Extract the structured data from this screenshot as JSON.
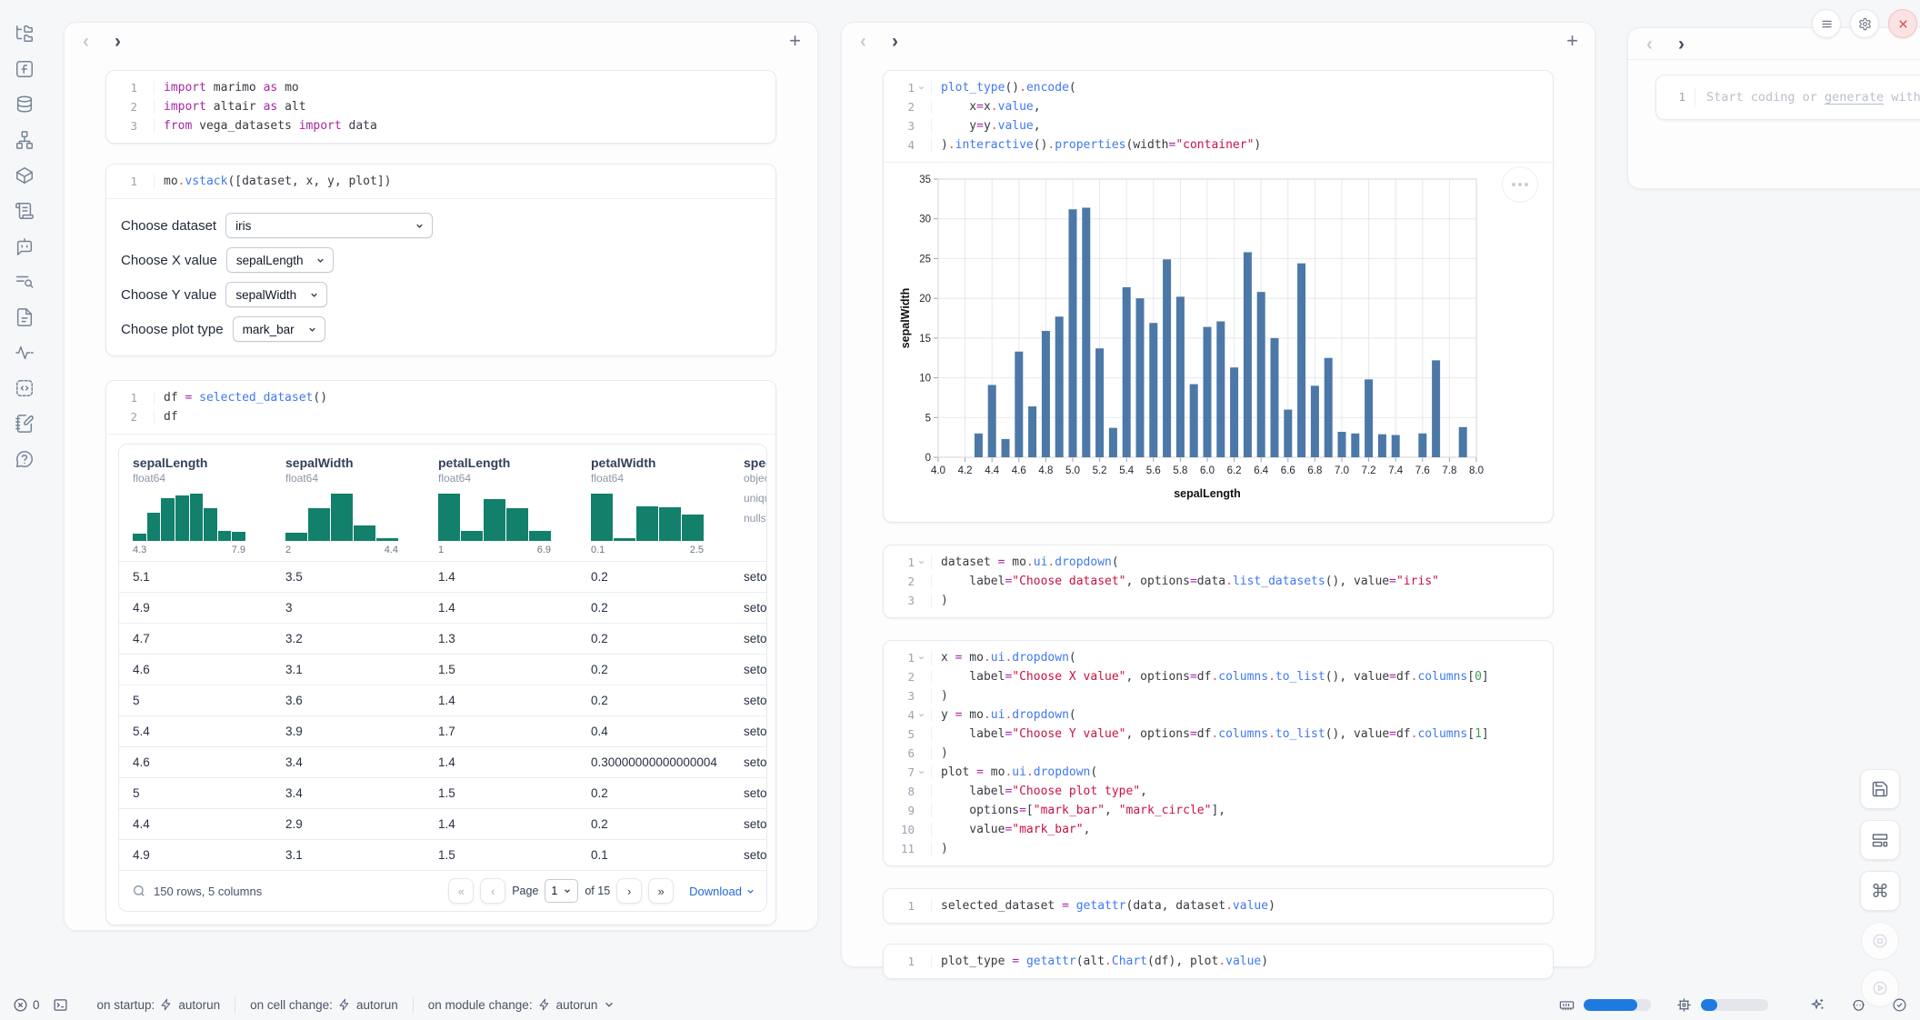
{
  "sidebar": {
    "icons": [
      "file-explorer",
      "functions",
      "data-sources",
      "dependency-graph",
      "packages",
      "logs",
      "ai-chat",
      "outline",
      "documentation",
      "tracing",
      "snippets",
      "scratchpad",
      "help"
    ]
  },
  "panel_nav": {
    "back": "‹",
    "forward": "›",
    "add": "+"
  },
  "left_panel": {
    "cells": {
      "imports": {
        "folds": [],
        "lines": [
          [
            [
              "kw",
              "import"
            ],
            [
              "pl",
              " marimo "
            ],
            [
              "kw",
              "as"
            ],
            [
              "pl",
              " mo"
            ]
          ],
          [
            [
              "kw",
              "import"
            ],
            [
              "pl",
              " altair "
            ],
            [
              "kw",
              "as"
            ],
            [
              "pl",
              " alt"
            ]
          ],
          [
            [
              "kw",
              "from"
            ],
            [
              "pl",
              " vega_datasets "
            ],
            [
              "kw",
              "import"
            ],
            [
              "pl",
              " data"
            ]
          ]
        ]
      },
      "vstack": {
        "folds": [],
        "lines": [
          [
            [
              "pl",
              "mo"
            ],
            [
              "dot",
              "."
            ],
            [
              "fn",
              "vstack"
            ],
            [
              "pl",
              "([dataset, x, y, plot])"
            ]
          ]
        ]
      },
      "df": {
        "folds": [],
        "lines": [
          [
            [
              "pl",
              "df "
            ],
            [
              "op",
              "="
            ],
            [
              "pl",
              " "
            ],
            [
              "fn",
              "selected_dataset"
            ],
            [
              "pl",
              "()"
            ]
          ],
          [
            [
              "pl",
              "df"
            ]
          ]
        ]
      }
    },
    "controls": [
      {
        "label": "Choose dataset",
        "value": "iris"
      },
      {
        "label": "Choose X value",
        "value": "sepalLength"
      },
      {
        "label": "Choose Y value",
        "value": "sepalWidth"
      },
      {
        "label": "Choose plot type",
        "value": "mark_bar"
      }
    ],
    "table": {
      "columns": [
        {
          "name": "sepalLength",
          "type": "float64",
          "min": "4.3",
          "max": "7.9",
          "hist": [
            16,
            59,
            91,
            96,
            100,
            69,
            21,
            19
          ]
        },
        {
          "name": "sepalWidth",
          "type": "float64",
          "min": "2",
          "max": "4.4",
          "hist": [
            17,
            69,
            100,
            33,
            6
          ]
        },
        {
          "name": "petalLength",
          "type": "float64",
          "min": "1",
          "max": "6.9",
          "hist": [
            100,
            22,
            88,
            70,
            22
          ]
        },
        {
          "name": "petalWidth",
          "type": "float64",
          "min": "0.1",
          "max": "2.5",
          "hist": [
            100,
            5,
            73,
            71,
            56
          ]
        },
        {
          "name": "species",
          "type": "object",
          "meta": [
            "unique:",
            "nulls:"
          ]
        }
      ],
      "rows": [
        [
          "5.1",
          "3.5",
          "1.4",
          "0.2",
          "setosa"
        ],
        [
          "4.9",
          "3",
          "1.4",
          "0.2",
          "setosa"
        ],
        [
          "4.7",
          "3.2",
          "1.3",
          "0.2",
          "setosa"
        ],
        [
          "4.6",
          "3.1",
          "1.5",
          "0.2",
          "setosa"
        ],
        [
          "5",
          "3.6",
          "1.4",
          "0.2",
          "setosa"
        ],
        [
          "5.4",
          "3.9",
          "1.7",
          "0.4",
          "setosa"
        ],
        [
          "4.6",
          "3.4",
          "1.4",
          "0.30000000000000004",
          "setosa"
        ],
        [
          "5",
          "3.4",
          "1.5",
          "0.2",
          "setosa"
        ],
        [
          "4.4",
          "2.9",
          "1.4",
          "0.2",
          "setosa"
        ],
        [
          "4.9",
          "3.1",
          "1.5",
          "0.1",
          "setosa"
        ]
      ],
      "footer": {
        "summary": "150 rows, 5 columns",
        "page_label": "Page",
        "page_value": "1",
        "of_label": "of 15",
        "download_label": "Download"
      }
    }
  },
  "middle_panel": {
    "cells": {
      "plot": {
        "folds": [
          1
        ],
        "lines": [
          [
            [
              "fn",
              "plot_type"
            ],
            [
              "pl",
              "()"
            ],
            [
              "dot",
              "."
            ],
            [
              "fn",
              "encode"
            ],
            [
              "pl",
              "("
            ]
          ],
          [
            [
              "pl",
              "    x"
            ],
            [
              "op",
              "="
            ],
            [
              "pl",
              "x"
            ],
            [
              "dot",
              "."
            ],
            [
              "fn",
              "value"
            ],
            [
              "pl",
              ","
            ]
          ],
          [
            [
              "pl",
              "    y"
            ],
            [
              "op",
              "="
            ],
            [
              "pl",
              "y"
            ],
            [
              "dot",
              "."
            ],
            [
              "fn",
              "value"
            ],
            [
              "pl",
              ","
            ]
          ],
          [
            [
              "pl",
              ")"
            ],
            [
              "dot",
              "."
            ],
            [
              "fn",
              "interactive"
            ],
            [
              "pl",
              "()"
            ],
            [
              "dot",
              "."
            ],
            [
              "fn",
              "properties"
            ],
            [
              "pl",
              "(width"
            ],
            [
              "op",
              "="
            ],
            [
              "str",
              "\"container\""
            ],
            [
              "pl",
              ")"
            ]
          ]
        ]
      },
      "dataset": {
        "folds": [
          1
        ],
        "lines": [
          [
            [
              "pl",
              "dataset "
            ],
            [
              "op",
              "="
            ],
            [
              "pl",
              " mo"
            ],
            [
              "dot",
              "."
            ],
            [
              "fn",
              "ui"
            ],
            [
              "dot",
              "."
            ],
            [
              "fn",
              "dropdown"
            ],
            [
              "pl",
              "("
            ]
          ],
          [
            [
              "pl",
              "    label"
            ],
            [
              "op",
              "="
            ],
            [
              "str",
              "\"Choose dataset\""
            ],
            [
              "pl",
              ", options"
            ],
            [
              "op",
              "="
            ],
            [
              "pl",
              "data"
            ],
            [
              "dot",
              "."
            ],
            [
              "fn",
              "list_datasets"
            ],
            [
              "pl",
              "(), value"
            ],
            [
              "op",
              "="
            ],
            [
              "str",
              "\"iris\""
            ]
          ],
          [
            [
              "pl",
              ")"
            ]
          ]
        ]
      },
      "xyplot": {
        "folds": [
          1,
          4,
          7
        ],
        "lines": [
          [
            [
              "pl",
              "x "
            ],
            [
              "op",
              "="
            ],
            [
              "pl",
              " mo"
            ],
            [
              "dot",
              "."
            ],
            [
              "fn",
              "ui"
            ],
            [
              "dot",
              "."
            ],
            [
              "fn",
              "dropdown"
            ],
            [
              "pl",
              "("
            ]
          ],
          [
            [
              "pl",
              "    label"
            ],
            [
              "op",
              "="
            ],
            [
              "str",
              "\"Choose X value\""
            ],
            [
              "pl",
              ", options"
            ],
            [
              "op",
              "="
            ],
            [
              "pl",
              "df"
            ],
            [
              "dot",
              "."
            ],
            [
              "fn",
              "columns"
            ],
            [
              "dot",
              "."
            ],
            [
              "fn",
              "to_list"
            ],
            [
              "pl",
              "(), value"
            ],
            [
              "op",
              "="
            ],
            [
              "pl",
              "df"
            ],
            [
              "dot",
              "."
            ],
            [
              "fn",
              "columns"
            ],
            [
              "pl",
              "["
            ],
            [
              "num",
              "0"
            ],
            [
              "pl",
              "]"
            ]
          ],
          [
            [
              "pl",
              ")"
            ]
          ],
          [
            [
              "pl",
              "y "
            ],
            [
              "op",
              "="
            ],
            [
              "pl",
              " mo"
            ],
            [
              "dot",
              "."
            ],
            [
              "fn",
              "ui"
            ],
            [
              "dot",
              "."
            ],
            [
              "fn",
              "dropdown"
            ],
            [
              "pl",
              "("
            ]
          ],
          [
            [
              "pl",
              "    label"
            ],
            [
              "op",
              "="
            ],
            [
              "str",
              "\"Choose Y value\""
            ],
            [
              "pl",
              ", options"
            ],
            [
              "op",
              "="
            ],
            [
              "pl",
              "df"
            ],
            [
              "dot",
              "."
            ],
            [
              "fn",
              "columns"
            ],
            [
              "dot",
              "."
            ],
            [
              "fn",
              "to_list"
            ],
            [
              "pl",
              "(), value"
            ],
            [
              "op",
              "="
            ],
            [
              "pl",
              "df"
            ],
            [
              "dot",
              "."
            ],
            [
              "fn",
              "columns"
            ],
            [
              "pl",
              "["
            ],
            [
              "num",
              "1"
            ],
            [
              "pl",
              "]"
            ]
          ],
          [
            [
              "pl",
              ")"
            ]
          ],
          [
            [
              "pl",
              "plot "
            ],
            [
              "op",
              "="
            ],
            [
              "pl",
              " mo"
            ],
            [
              "dot",
              "."
            ],
            [
              "fn",
              "ui"
            ],
            [
              "dot",
              "."
            ],
            [
              "fn",
              "dropdown"
            ],
            [
              "pl",
              "("
            ]
          ],
          [
            [
              "pl",
              "    label"
            ],
            [
              "op",
              "="
            ],
            [
              "str",
              "\"Choose plot type\""
            ],
            [
              "pl",
              ","
            ]
          ],
          [
            [
              "pl",
              "    options"
            ],
            [
              "op",
              "="
            ],
            [
              "pl",
              "["
            ],
            [
              "str",
              "\"mark_bar\""
            ],
            [
              "pl",
              ", "
            ],
            [
              "str",
              "\"mark_circle\""
            ],
            [
              "pl",
              "],"
            ]
          ],
          [
            [
              "pl",
              "    value"
            ],
            [
              "op",
              "="
            ],
            [
              "str",
              "\"mark_bar\""
            ],
            [
              "pl",
              ","
            ]
          ],
          [
            [
              "pl",
              ")"
            ]
          ]
        ]
      },
      "selected": {
        "folds": [],
        "lines": [
          [
            [
              "pl",
              "selected_dataset "
            ],
            [
              "op",
              "="
            ],
            [
              "pl",
              " "
            ],
            [
              "fn",
              "getattr"
            ],
            [
              "pl",
              "(data, dataset"
            ],
            [
              "dot",
              "."
            ],
            [
              "fn",
              "value"
            ],
            [
              "pl",
              ")"
            ]
          ]
        ]
      },
      "plottype": {
        "folds": [],
        "lines": [
          [
            [
              "pl",
              "plot_type "
            ],
            [
              "op",
              "="
            ],
            [
              "pl",
              " "
            ],
            [
              "fn",
              "getattr"
            ],
            [
              "pl",
              "(alt"
            ],
            [
              "dot",
              "."
            ],
            [
              "fn",
              "Chart"
            ],
            [
              "pl",
              "(df), plot"
            ],
            [
              "dot",
              "."
            ],
            [
              "fn",
              "value"
            ],
            [
              "pl",
              ")"
            ]
          ]
        ]
      }
    }
  },
  "chart_data": {
    "type": "bar",
    "title": "",
    "xlabel": "sepalLength",
    "ylabel": "sepalWidth",
    "xlim": [
      4.0,
      8.0
    ],
    "ylim": [
      0,
      35
    ],
    "x_tick_step": 0.2,
    "y_tick_step": 5,
    "grid": true,
    "legend": "none",
    "bar_color": "#4c78a8",
    "bars": [
      [
        4.3,
        3.0
      ],
      [
        4.4,
        9.1
      ],
      [
        4.5,
        2.3
      ],
      [
        4.6,
        13.3
      ],
      [
        4.7,
        6.4
      ],
      [
        4.8,
        15.9
      ],
      [
        4.9,
        17.7
      ],
      [
        5.0,
        31.2
      ],
      [
        5.1,
        31.4
      ],
      [
        5.2,
        13.7
      ],
      [
        5.3,
        3.7
      ],
      [
        5.4,
        21.4
      ],
      [
        5.5,
        20.0
      ],
      [
        5.6,
        16.9
      ],
      [
        5.7,
        24.9
      ],
      [
        5.8,
        20.2
      ],
      [
        5.9,
        9.2
      ],
      [
        6.0,
        16.4
      ],
      [
        6.1,
        17.1
      ],
      [
        6.2,
        11.3
      ],
      [
        6.3,
        25.8
      ],
      [
        6.4,
        20.8
      ],
      [
        6.5,
        15.0
      ],
      [
        6.6,
        6.0
      ],
      [
        6.7,
        24.4
      ],
      [
        6.8,
        9.0
      ],
      [
        6.9,
        12.5
      ],
      [
        7.0,
        3.2
      ],
      [
        7.1,
        3.0
      ],
      [
        7.2,
        9.8
      ],
      [
        7.3,
        2.9
      ],
      [
        7.4,
        2.8
      ],
      [
        7.6,
        3.0
      ],
      [
        7.7,
        12.2
      ],
      [
        7.9,
        3.8
      ]
    ]
  },
  "right_panel": {
    "line_number": "1",
    "placeholder_pre": "Start coding or ",
    "placeholder_link": "generate",
    "placeholder_post": " with AI"
  },
  "statusbar": {
    "error_count": "0",
    "run_settings": [
      {
        "label": "on startup:",
        "value": "autorun"
      },
      {
        "label": "on cell change:",
        "value": "autorun"
      },
      {
        "label": "on module change:",
        "value": "autorun"
      }
    ],
    "memory_pct": 80,
    "cpu_pct": 24
  },
  "colors": {
    "accent_blue": "#1f7ae0",
    "chart_bar": "#4c78a8",
    "histogram_teal": "#12806a",
    "download_link": "#2468d9",
    "close_button_red": "#da4f4f"
  }
}
